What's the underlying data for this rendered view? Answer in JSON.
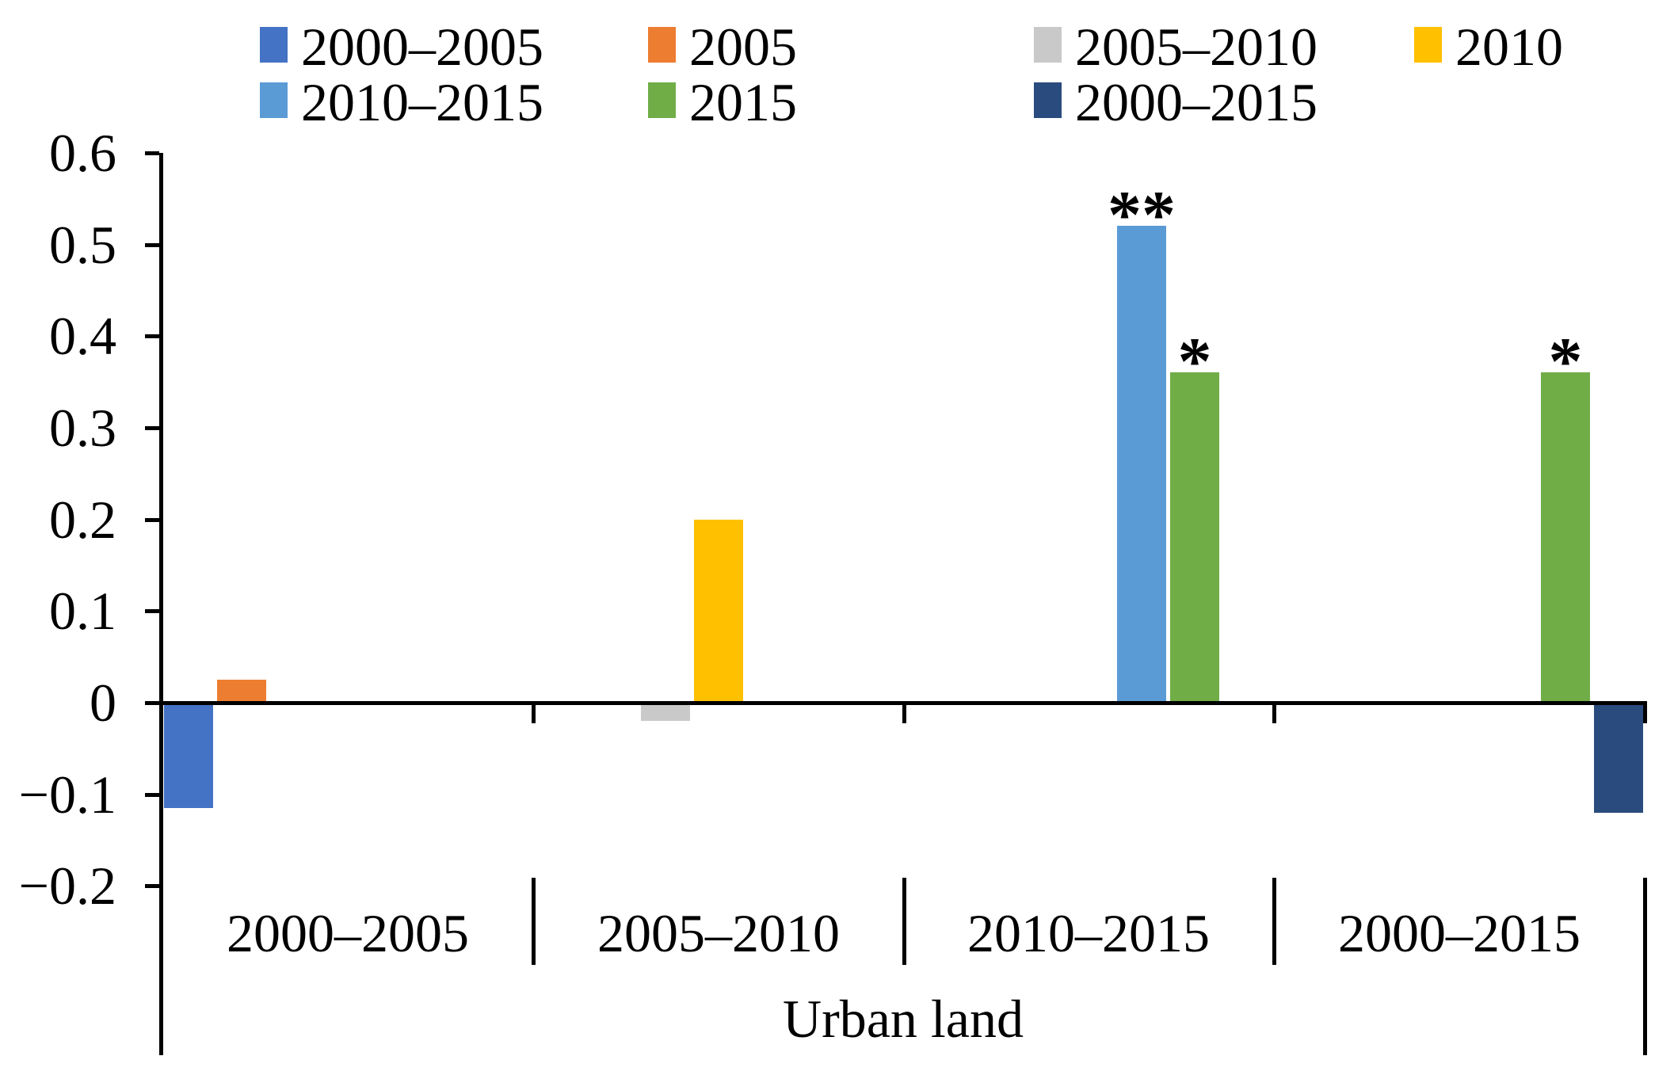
{
  "chart_data": {
    "type": "bar",
    "title": "",
    "xlabel": "Urban land",
    "ylabel": "",
    "ylim": [
      -0.2,
      0.6
    ],
    "ytick_values": [
      0.6,
      0.5,
      0.4,
      0.3,
      0.2,
      0.1,
      0,
      -0.1,
      -0.2
    ],
    "ytick_labels": [
      "0.6",
      "0.5",
      "0.4",
      "0.3",
      "0.2",
      "0.1",
      "0",
      "−0.1",
      "−0.2"
    ],
    "categories": [
      "2000–2005",
      "2005–2010",
      "2010–2015",
      "2000–2015"
    ],
    "series": [
      {
        "name": "2000–2005",
        "color": "#4472C4",
        "values": [
          -0.115,
          null,
          null,
          null
        ]
      },
      {
        "name": "2005",
        "color": "#ED7D31",
        "values": [
          0.025,
          null,
          null,
          null
        ]
      },
      {
        "name": "2005–2010",
        "color": "#C9C9C9",
        "values": [
          null,
          -0.02,
          null,
          null
        ]
      },
      {
        "name": "2010",
        "color": "#FFC000",
        "values": [
          null,
          0.2,
          null,
          null
        ]
      },
      {
        "name": "2010–2015",
        "color": "#5B9BD5",
        "values": [
          null,
          null,
          0.52,
          null
        ]
      },
      {
        "name": "2015",
        "color": "#70AD47",
        "values": [
          null,
          null,
          0.36,
          0.36
        ]
      },
      {
        "name": "2000–2015",
        "color": "#2A4B7E",
        "values": [
          null,
          null,
          null,
          -0.12
        ]
      }
    ],
    "annotations": [
      {
        "text": "**",
        "category_index": 2,
        "series_index": 4
      },
      {
        "text": "*",
        "category_index": 2,
        "series_index": 5
      },
      {
        "text": "*",
        "category_index": 3,
        "series_index": 5
      }
    ],
    "legend_position": "top",
    "grid": false
  }
}
